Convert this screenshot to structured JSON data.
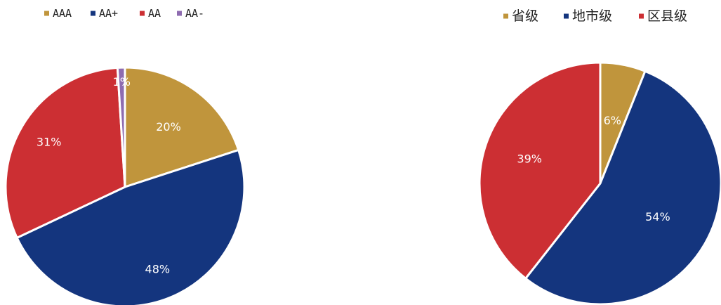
{
  "chart_data": [
    {
      "type": "pie",
      "categories": [
        "AAA",
        "AA+",
        "AA",
        "AA-"
      ],
      "values": [
        20,
        48,
        31,
        1
      ],
      "value_labels": [
        "20%",
        "48%",
        "31%",
        "1%"
      ],
      "colors": [
        "#C0953C",
        "#14357E",
        "#CC2F33",
        "#8E6BB0"
      ],
      "legend_placement": "top-left",
      "title": ""
    },
    {
      "type": "pie",
      "categories": [
        "省级",
        "地市级",
        "区县级"
      ],
      "values": [
        6,
        54,
        39
      ],
      "value_labels": [
        "6%",
        "54%",
        "39%"
      ],
      "colors": [
        "#C0953C",
        "#14357E",
        "#CC2F33"
      ],
      "legend_placement": "top-right",
      "title": ""
    }
  ]
}
